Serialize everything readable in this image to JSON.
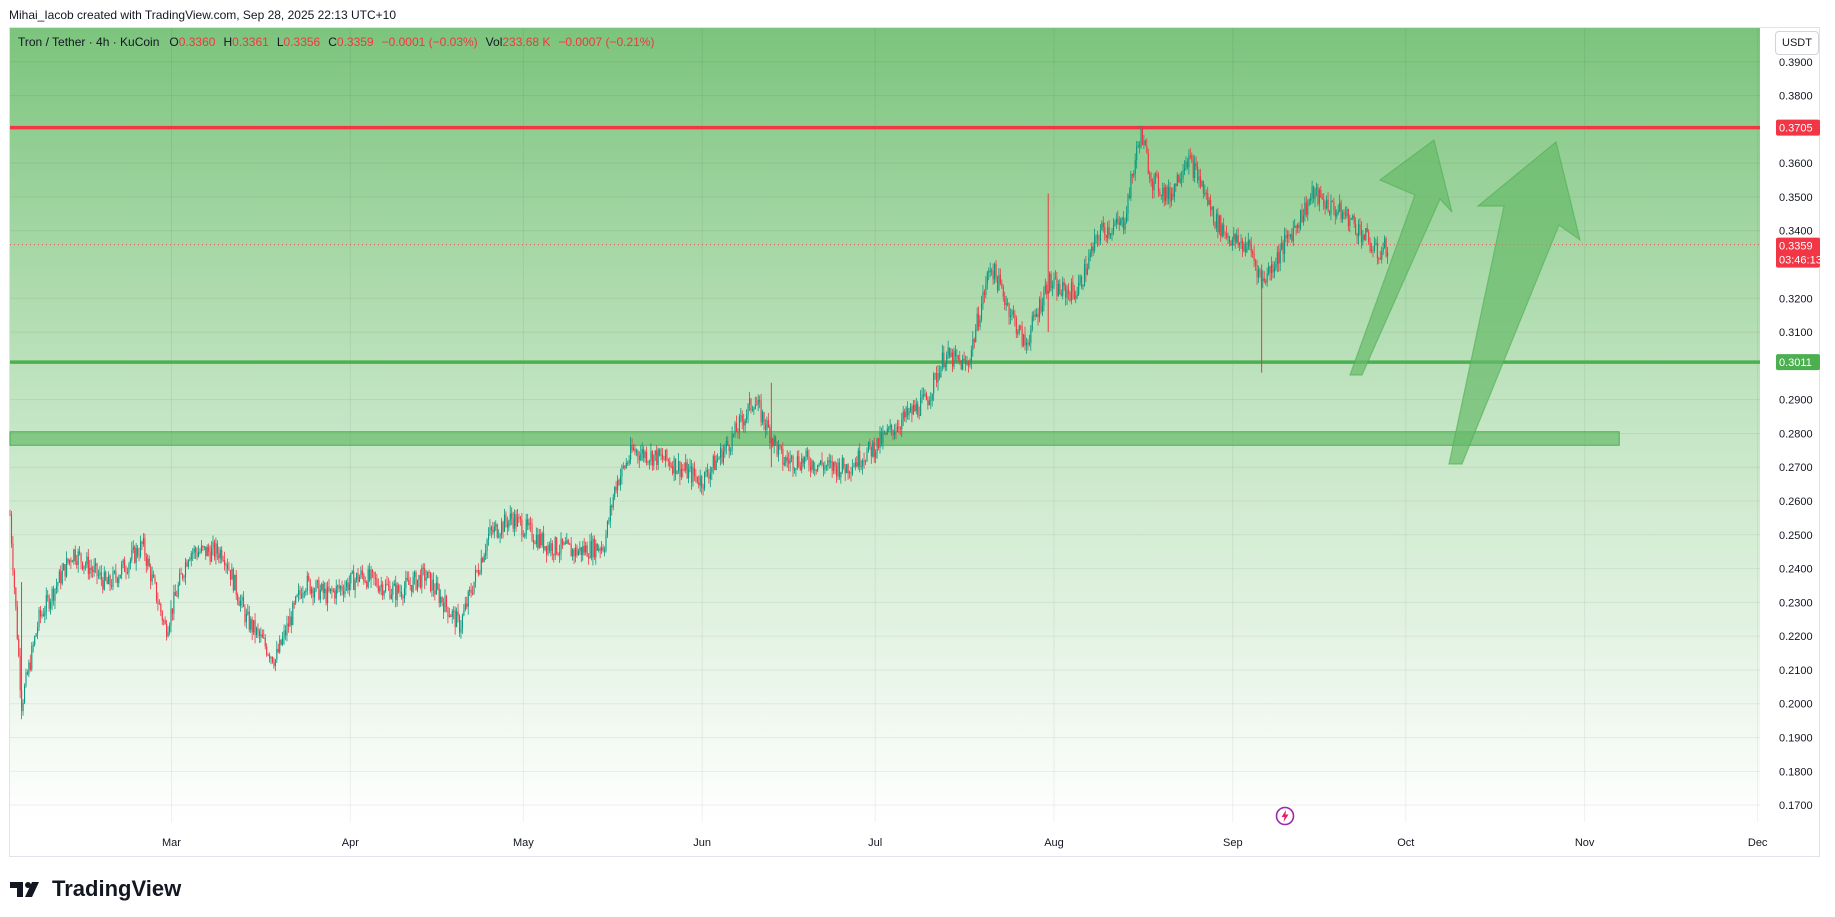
{
  "attribution": "Mihai_Iacob created with TradingView.com, Sep 28, 2025 22:13 UTC+10",
  "legend": {
    "symbol": "Tron / Tether · 4h · KuCoin",
    "open_label": "O",
    "open_value": "0.3360",
    "high_label": "H",
    "high_value": "0.3361",
    "low_label": "L",
    "low_value": "0.3356",
    "close_label": "C",
    "close_value": "0.3359",
    "change": "−0.0001 (−0.03%)",
    "vol_label": "Vol",
    "vol_value": "233.68 K",
    "vol_change": "−0.0007 (−0.21%)"
  },
  "currency_button": "USDT",
  "brand": "TradingView",
  "colors": {
    "resistance": "#f23645",
    "support": "#4caf50",
    "zone": "#4caf50",
    "up_candle": "#089981",
    "down_candle": "#f23645",
    "arrow": "#66bb6a"
  },
  "icons": {
    "logo": "tradingview-logo-icon",
    "flash": "lightning-icon"
  },
  "chart_data": {
    "type": "candlestick",
    "title": "Tron / Tether · 4h · KuCoin",
    "ylim": [
      0.165,
      0.4
    ],
    "y_ticks": [
      "0.3900",
      "0.3800",
      "0.3600",
      "0.3500",
      "0.3400",
      "0.3200",
      "0.3100",
      "0.2900",
      "0.2800",
      "0.2700",
      "0.2600",
      "0.2500",
      "0.2400",
      "0.2300",
      "0.2200",
      "0.2100",
      "0.2000",
      "0.1900",
      "0.1800",
      "0.1700"
    ],
    "x_ticks": [
      "Mar",
      "Apr",
      "May",
      "Jun",
      "Jul",
      "Aug",
      "Sep",
      "Oct",
      "Nov",
      "Dec"
    ],
    "grid": true,
    "current_price": "0.3359",
    "countdown": "03:46:13",
    "resistance": {
      "price": 0.3705,
      "label": "0.3705"
    },
    "support": {
      "price": 0.3011,
      "label": "0.3011"
    },
    "zone": {
      "low": 0.2765,
      "high": 0.2805
    },
    "price_path": [
      [
        "2025-02-01",
        0.256
      ],
      [
        "2025-02-03",
        0.2
      ],
      [
        "2025-02-06",
        0.225
      ],
      [
        "2025-02-12",
        0.245
      ],
      [
        "2025-02-18",
        0.235
      ],
      [
        "2025-02-24",
        0.247
      ],
      [
        "2025-02-28",
        0.222
      ],
      [
        "2025-03-04",
        0.245
      ],
      [
        "2025-03-10",
        0.245
      ],
      [
        "2025-03-14",
        0.225
      ],
      [
        "2025-03-19",
        0.213
      ],
      [
        "2025-03-24",
        0.236
      ],
      [
        "2025-03-28",
        0.232
      ],
      [
        "2025-04-03",
        0.238
      ],
      [
        "2025-04-09",
        0.233
      ],
      [
        "2025-04-14",
        0.238
      ],
      [
        "2025-04-20",
        0.223
      ],
      [
        "2025-04-25",
        0.25
      ],
      [
        "2025-04-29",
        0.255
      ],
      [
        "2025-05-05",
        0.247
      ],
      [
        "2025-05-10",
        0.245
      ],
      [
        "2025-05-15",
        0.247
      ],
      [
        "2025-05-17",
        0.265
      ],
      [
        "2025-05-20",
        0.275
      ],
      [
        "2025-05-26",
        0.272
      ],
      [
        "2025-06-01",
        0.266
      ],
      [
        "2025-06-06",
        0.278
      ],
      [
        "2025-06-10",
        0.29
      ],
      [
        "2025-06-15",
        0.272
      ],
      [
        "2025-06-19",
        0.272
      ],
      [
        "2025-06-23",
        0.27
      ],
      [
        "2025-06-26",
        0.27
      ],
      [
        "2025-07-01",
        0.276
      ],
      [
        "2025-07-05",
        0.283
      ],
      [
        "2025-07-10",
        0.29
      ],
      [
        "2025-07-13",
        0.303
      ],
      [
        "2025-07-17",
        0.3
      ],
      [
        "2025-07-21",
        0.33
      ],
      [
        "2025-07-27",
        0.306
      ],
      [
        "2025-07-31",
        0.325
      ],
      [
        "2025-08-02",
        0.322
      ],
      [
        "2025-08-05",
        0.322
      ],
      [
        "2025-08-09",
        0.34
      ],
      [
        "2025-08-13",
        0.342
      ],
      [
        "2025-08-16",
        0.369
      ],
      [
        "2025-08-18",
        0.355
      ],
      [
        "2025-08-21",
        0.35
      ],
      [
        "2025-08-24",
        0.362
      ],
      [
        "2025-08-26",
        0.356
      ],
      [
        "2025-08-29",
        0.343
      ],
      [
        "2025-09-01",
        0.337
      ],
      [
        "2025-09-04",
        0.335
      ],
      [
        "2025-09-06",
        0.325
      ],
      [
        "2025-09-08",
        0.33
      ],
      [
        "2025-09-12",
        0.342
      ],
      [
        "2025-09-15",
        0.351
      ],
      [
        "2025-09-18",
        0.347
      ],
      [
        "2025-09-21",
        0.344
      ],
      [
        "2025-09-24",
        0.338
      ],
      [
        "2025-09-26",
        0.333
      ],
      [
        "2025-09-28",
        0.3359
      ]
    ]
  }
}
